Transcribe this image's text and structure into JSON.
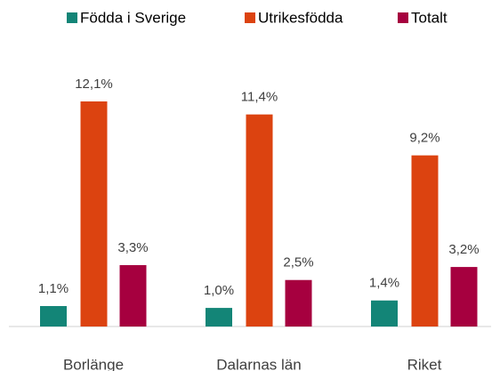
{
  "chart_data": {
    "type": "bar",
    "categories": [
      "Borlänge",
      "Dalarnas län",
      "Riket"
    ],
    "series": [
      {
        "name": "Födda i Sverige",
        "color": "#138577",
        "values": [
          1.1,
          1.0,
          1.4
        ],
        "value_labels": [
          "1,1%",
          "1,0%",
          "1,4%"
        ]
      },
      {
        "name": "Utrikesfödda",
        "color": "#dc4310",
        "values": [
          12.1,
          11.4,
          9.2
        ],
        "value_labels": [
          "12,1%",
          "11,4%",
          "9,2%"
        ]
      },
      {
        "name": "Totalt",
        "color": "#a6003f",
        "values": [
          3.3,
          2.5,
          3.2
        ],
        "value_labels": [
          "3,3%",
          "2,5%",
          "3,2%"
        ]
      }
    ]
  }
}
